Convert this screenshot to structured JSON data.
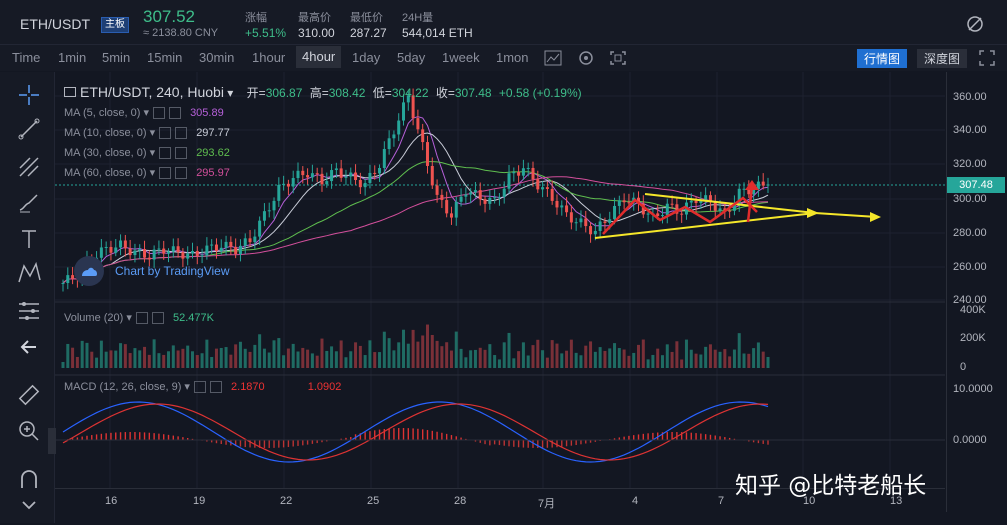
{
  "header": {
    "pair": "ETH/USDT",
    "badge": "主板",
    "price": "307.52",
    "cny": "≈ 2138.80 CNY",
    "stats": [
      {
        "label": "涨幅",
        "value": "+5.51%",
        "color": "#3ebd8a"
      },
      {
        "label": "最高价",
        "value": "310.00",
        "color": "#d1d4dc"
      },
      {
        "label": "最低价",
        "value": "287.27",
        "color": "#d1d4dc"
      },
      {
        "label": "24H量",
        "value": "544,014 ETH",
        "color": "#d1d4dc"
      }
    ]
  },
  "toolbar": {
    "time": "Time",
    "intervals": [
      "1min",
      "5min",
      "15min",
      "30min",
      "1hour",
      "4hour",
      "1day",
      "5day",
      "1week",
      "1mon"
    ],
    "active_interval": "4hour",
    "kline_btn": "行情图",
    "depth_btn": "深度图"
  },
  "sidebar": {
    "icons": [
      "crosshair-icon",
      "trendline-icon",
      "pitchfork-icon",
      "brush-icon",
      "text-icon",
      "pattern-icon",
      "measure-icon",
      "back-arrow-icon",
      "ruler-icon",
      "zoom-icon",
      "magnet-icon",
      "chevron-down-icon"
    ]
  },
  "legend": {
    "title": "ETH/USDT, 240, Huobi",
    "open_label": "开=",
    "open": "306.87",
    "high_label": "高=",
    "high": "308.42",
    "low_label": "低=",
    "low": "304.22",
    "close_label": "收=",
    "close": "307.48",
    "change": "+0.58 (+0.19%)",
    "ma": [
      {
        "label": "MA (5, close, 0)",
        "value": "305.89",
        "color": "#b660d9"
      },
      {
        "label": "MA (10, close, 0)",
        "value": "297.77",
        "color": "#c9cdd8"
      },
      {
        "label": "MA (30, close, 0)",
        "value": "293.62",
        "color": "#5fbe4f"
      },
      {
        "label": "MA (60, close, 0)",
        "value": "295.97",
        "color": "#d24f9b"
      }
    ],
    "watermark": "Chart by TradingView",
    "volume_label": "Volume (20)",
    "volume_value": "52.477K",
    "macd_label": "MACD (12, 26, close, 9)",
    "macd_v1": "2.1870",
    "macd_v2": "1.0902"
  },
  "price_axis": [
    "360.00",
    "340.00",
    "320.00",
    "300.00",
    "280.00",
    "260.00",
    "240.00"
  ],
  "last_price_tag": "307.48",
  "volume_axis": [
    "400K",
    "200K",
    "0"
  ],
  "macd_axis": [
    "10.0000",
    "0.0000"
  ],
  "x_axis": [
    "16",
    "19",
    "22",
    "25",
    "28",
    "7月",
    "4",
    "7",
    "10",
    "13"
  ],
  "watermark_zh": "知乎 @比特老船长",
  "chart_data": {
    "type": "candlestick",
    "price_ylim": [
      240,
      365
    ],
    "candles_approx": [
      250,
      255,
      265,
      270,
      272,
      268,
      266,
      270,
      268,
      266,
      270,
      272,
      270,
      275,
      290,
      305,
      312,
      315,
      310,
      316,
      312,
      308,
      320,
      340,
      360,
      330,
      300,
      290,
      305,
      300,
      298,
      312,
      318,
      308,
      300,
      290,
      285,
      280,
      290,
      300,
      296,
      288,
      295,
      292,
      300,
      298,
      290,
      303,
      306,
      308
    ]
  },
  "colors": {
    "up": "#26a69a",
    "down": "#ef5350",
    "bg": "#131722",
    "annotation_yellow": "#f5e72a",
    "annotation_red": "#e02c2c"
  }
}
